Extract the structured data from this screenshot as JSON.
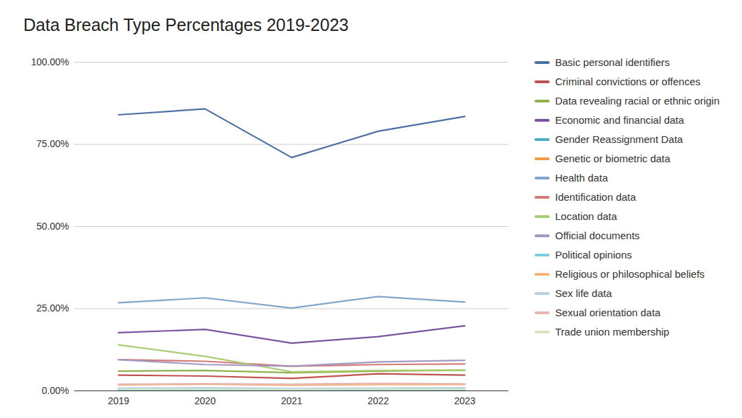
{
  "chart_data": {
    "type": "line",
    "title": "Data Breach Type Percentages 2019-2023",
    "categories": [
      "2019",
      "2020",
      "2021",
      "2022",
      "2023"
    ],
    "series": [
      {
        "name": "Basic personal identifiers",
        "color": "#4a6fa5",
        "values": [
          84,
          85.8,
          71,
          79,
          83.5
        ]
      },
      {
        "name": "Criminal convictions or offences",
        "color": "#c0504d",
        "values": [
          4.8,
          4.5,
          3.8,
          5.2,
          4.8
        ]
      },
      {
        "name": "Data revealing racial or ethnic origin",
        "color": "#8fb04a",
        "values": [
          6,
          6.2,
          5.5,
          6,
          6.3
        ]
      },
      {
        "name": "Economic and financial data",
        "color": "#7b52a0",
        "values": [
          17.7,
          18.7,
          14.5,
          16.5,
          19.8
        ]
      },
      {
        "name": "Gender Reassignment Data",
        "color": "#4bacc6",
        "values": [
          0.3,
          0.3,
          0.2,
          0.2,
          0.2
        ]
      },
      {
        "name": "Genetic or biometric data",
        "color": "#f29b47",
        "values": [
          0.5,
          0.5,
          0.4,
          0.5,
          0.4
        ]
      },
      {
        "name": "Health data",
        "color": "#7fa5cc",
        "values": [
          26.8,
          28.3,
          25.2,
          28.7,
          27
        ]
      },
      {
        "name": "Identification data",
        "color": "#d27a76",
        "values": [
          9.5,
          9,
          7.5,
          8,
          8.2
        ]
      },
      {
        "name": "Location data",
        "color": "#a9cc72",
        "values": [
          14,
          10.5,
          5.8,
          6.2,
          6.3
        ]
      },
      {
        "name": "Official documents",
        "color": "#a397c4",
        "values": [
          9.5,
          8,
          7.5,
          8.8,
          9.3
        ]
      },
      {
        "name": "Political opinions",
        "color": "#7ccfdf",
        "values": [
          0.3,
          0.3,
          0.3,
          0.3,
          0.3
        ]
      },
      {
        "name": "Religious or philosophical beliefs",
        "color": "#f7b37c",
        "values": [
          1.8,
          2,
          1.7,
          1.9,
          1.9
        ]
      },
      {
        "name": "Sex life data",
        "color": "#b6cfe7",
        "values": [
          0.8,
          0.9,
          0.7,
          0.8,
          0.9
        ]
      },
      {
        "name": "Sexual orientation data",
        "color": "#e8b5b3",
        "values": [
          2,
          2.2,
          2,
          2.3,
          2.1
        ]
      },
      {
        "name": "Trade union membership",
        "color": "#d6e6bf",
        "values": [
          0.5,
          0.5,
          0.4,
          0.5,
          0.5
        ]
      }
    ],
    "ylim": [
      0,
      100
    ],
    "yticks": [
      {
        "value": 0,
        "label": "0.00%"
      },
      {
        "value": 25,
        "label": "25.00%"
      },
      {
        "value": 50,
        "label": "50.00%"
      },
      {
        "value": 75,
        "label": "75.00%"
      },
      {
        "value": 100,
        "label": "100.00%"
      }
    ],
    "grid": true,
    "legend": "right"
  }
}
